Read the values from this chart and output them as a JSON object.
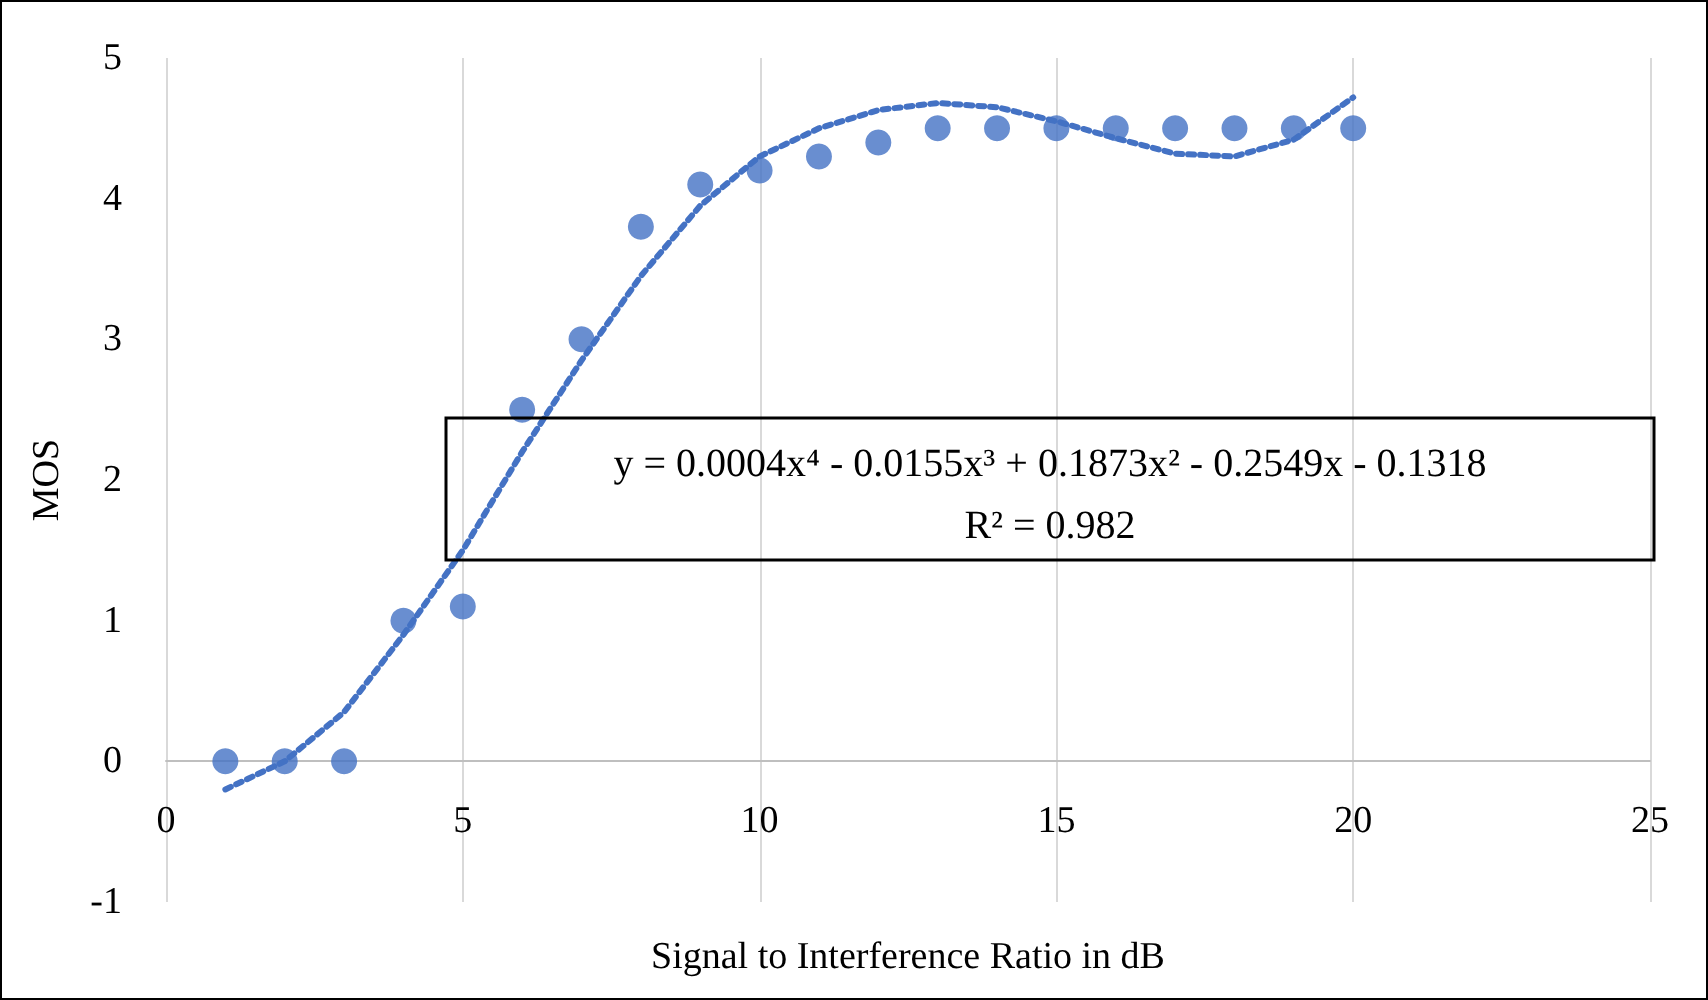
{
  "chart_data": {
    "type": "scatter",
    "xlabel": "Signal to Interference Ratio in dB",
    "ylabel": "MOS",
    "annotations": [
      "y = 0.0004x⁴ - 0.0155x³ + 0.1873x² - 0.2549x - 0.1318",
      "R² = 0.982"
    ],
    "xlim": [
      0,
      25
    ],
    "xticks": [
      0,
      5,
      10,
      15,
      20,
      25
    ],
    "ylim": [
      -1,
      5
    ],
    "yticks": [
      -1,
      0,
      1,
      2,
      3,
      4,
      5
    ],
    "grid": "x",
    "series": [
      {
        "type": "scatter",
        "color": "#4472c4",
        "marker": "circle",
        "x": [
          1,
          2,
          3,
          4,
          5,
          6,
          7,
          8,
          9,
          10,
          11,
          12,
          13,
          14,
          15,
          16,
          17,
          18,
          19,
          20
        ],
        "values": [
          0,
          0,
          0,
          1,
          1.1,
          2.5,
          3,
          3.8,
          4.1,
          4.2,
          4.3,
          4.4,
          4.5,
          4.5,
          4.5,
          4.5,
          4.5,
          4.5,
          4.5,
          4.5
        ]
      },
      {
        "type": "line",
        "color": "#4472c4",
        "marker": "none",
        "line_style": "dotted",
        "x": [
          1,
          2,
          3,
          4,
          5,
          6,
          7,
          8,
          9,
          10,
          11,
          12,
          13,
          14,
          15,
          16,
          17,
          18,
          19,
          20
        ],
        "values": [
          -0.2,
          0,
          0.35,
          0.9,
          1.5,
          2.2,
          2.85,
          3.45,
          3.95,
          4.3,
          4.5,
          4.63,
          4.68,
          4.65,
          4.55,
          4.43,
          4.32,
          4.3,
          4.42,
          4.72
        ]
      }
    ]
  }
}
